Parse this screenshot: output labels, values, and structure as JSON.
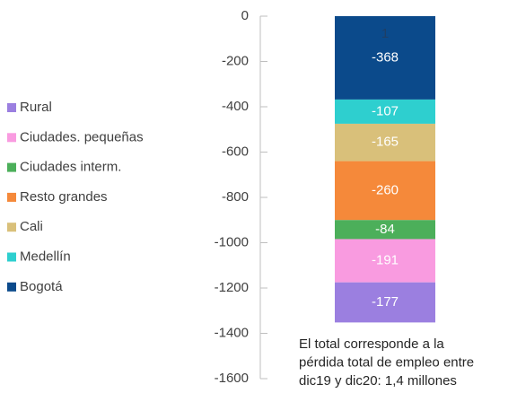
{
  "chart_data": {
    "type": "stacked_bar",
    "ylim": [
      0,
      -1600
    ],
    "yticks": [
      0,
      -200,
      -400,
      -600,
      -800,
      -1000,
      -1200,
      -1400,
      -1600
    ],
    "series": [
      {
        "name": "Bogotá",
        "color": "#0b4a8b",
        "values": [
          -368
        ]
      },
      {
        "name": "Medellín",
        "color": "#2ecfcf",
        "values": [
          -107
        ]
      },
      {
        "name": "Cali",
        "color": "#d9c07a",
        "values": [
          -165
        ]
      },
      {
        "name": "Resto grandes",
        "color": "#f5893a",
        "values": [
          -260
        ]
      },
      {
        "name": "Ciudades interm.",
        "color": "#4caf5a",
        "values": [
          -84
        ]
      },
      {
        "name": "Ciudades. pequeñas",
        "color": "#f99be0",
        "values": [
          -191
        ]
      },
      {
        "name": "Rural",
        "color": "#9b7fe0",
        "values": [
          -177
        ]
      }
    ],
    "top_label": "1",
    "annotation": [
      "El total corresponde a la",
      "pérdida total de empleo entre",
      "dic19 y dic20: 1,4 millones"
    ]
  }
}
